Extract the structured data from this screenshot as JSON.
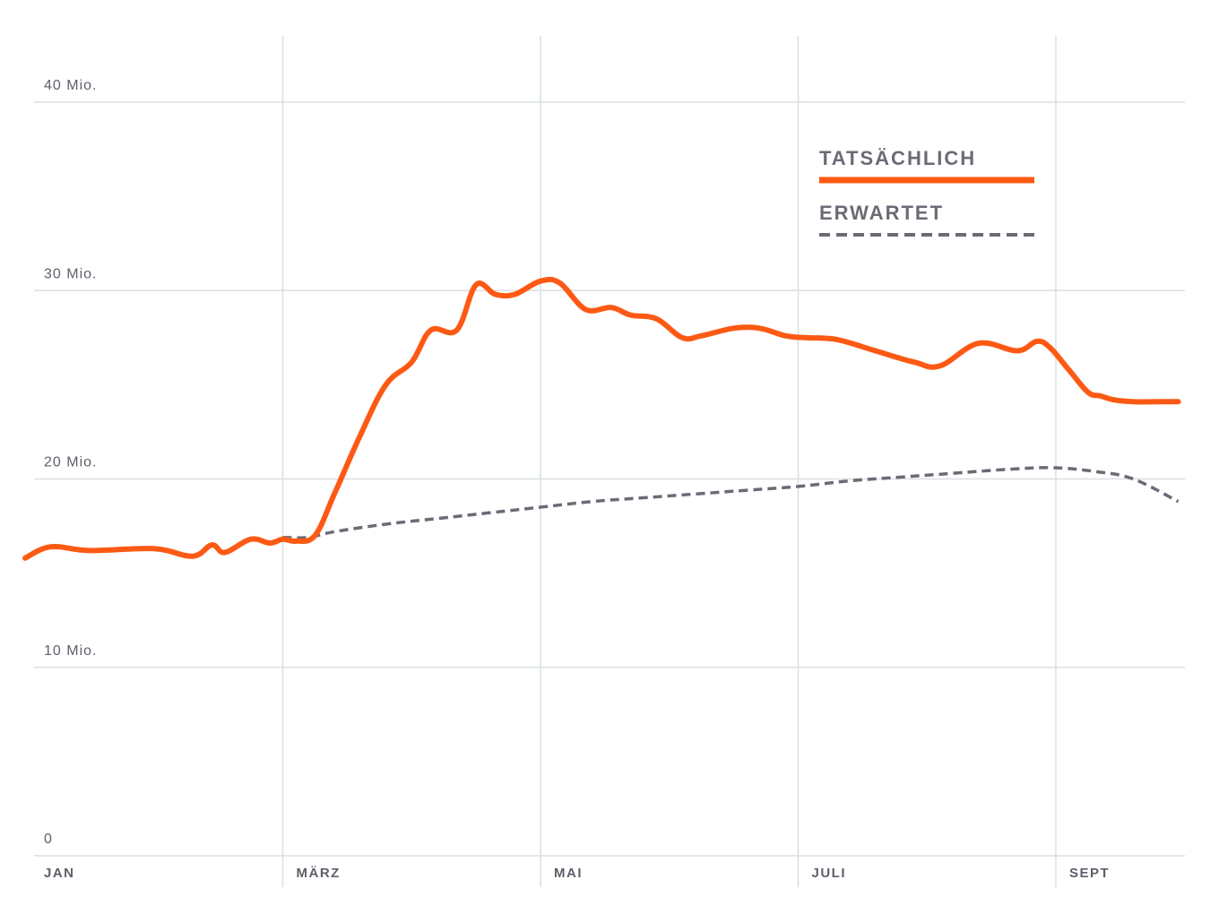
{
  "chart_data": {
    "type": "line",
    "title": "",
    "xlabel": "",
    "ylabel": "",
    "y_tick_labels": [
      "0",
      "10 Mio.",
      "20 Mio.",
      "30 Mio.",
      "40 Mio."
    ],
    "y_tick_values": [
      0,
      10,
      20,
      30,
      40
    ],
    "x_tick_labels": [
      "JAN",
      "MÄRZ",
      "MAI",
      "JULI",
      "SEPT"
    ],
    "x_tick_values": [
      0,
      2,
      4,
      6,
      8
    ],
    "xlim": [
      0,
      8.95
    ],
    "ylim": [
      0,
      40
    ],
    "grid": true,
    "legend_position": "top-right",
    "series": [
      {
        "name": "TATSÄCHLICH",
        "color": "#fc5a14",
        "style": "solid",
        "x": [
          0,
          0.2,
          0.5,
          1.0,
          1.3,
          1.45,
          1.55,
          1.75,
          1.9,
          2.0,
          2.1,
          2.25,
          2.4,
          2.6,
          2.8,
          3.0,
          3.15,
          3.35,
          3.5,
          3.65,
          3.8,
          4.0,
          4.15,
          4.35,
          4.55,
          4.7,
          4.9,
          5.1,
          5.25,
          5.5,
          5.7,
          5.9,
          6.05,
          6.3,
          6.6,
          6.9,
          7.1,
          7.4,
          7.7,
          7.85,
          7.95,
          8.1,
          8.25,
          8.35,
          8.45,
          8.6,
          8.8,
          8.95
        ],
        "values": [
          15.8,
          16.4,
          16.2,
          16.3,
          15.9,
          16.5,
          16.1,
          16.8,
          16.6,
          16.8,
          16.7,
          17.0,
          19.2,
          22.3,
          25.0,
          26.2,
          27.9,
          27.9,
          30.3,
          29.8,
          29.8,
          30.5,
          30.4,
          29.0,
          29.1,
          28.7,
          28.5,
          27.5,
          27.6,
          28.0,
          28.0,
          27.6,
          27.5,
          27.4,
          26.8,
          26.2,
          26.0,
          27.2,
          26.8,
          27.3,
          27.0,
          25.8,
          24.6,
          24.4,
          24.2,
          24.1,
          24.1,
          24.1
        ],
        "_note": "values read approximately from gridlines, in millions"
      },
      {
        "name": "ERWARTET",
        "color": "#6b6b76",
        "style": "dashed",
        "x": [
          2.0,
          2.2,
          2.4,
          2.8,
          3.2,
          3.6,
          4.0,
          4.4,
          4.8,
          5.2,
          5.6,
          6.0,
          6.4,
          6.8,
          7.2,
          7.6,
          7.96,
          8.3,
          8.6,
          8.95
        ],
        "values": [
          16.9,
          16.9,
          17.2,
          17.6,
          17.9,
          18.2,
          18.5,
          18.8,
          19.0,
          19.2,
          19.4,
          19.6,
          19.9,
          20.1,
          20.3,
          20.5,
          20.6,
          20.4,
          20.0,
          18.8
        ]
      }
    ]
  }
}
